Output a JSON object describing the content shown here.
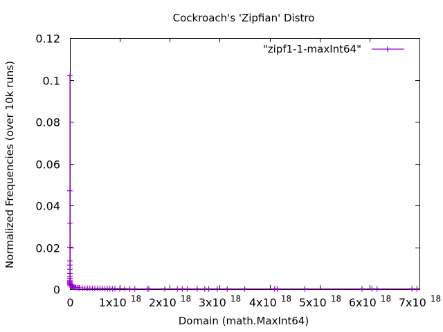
{
  "chart_data": {
    "type": "scatter",
    "title": "Cockroach's 'Zipfian' Distro",
    "xlabel": "Domain (math.MaxInt64)",
    "ylabel": "Normalized Frequencies (over 10k runs)",
    "xlim": [
      0,
      7e+18
    ],
    "ylim": [
      0,
      0.12
    ],
    "grid": false,
    "legend_position": "top-right",
    "x_ticks": [
      {
        "value": 0,
        "base": "0",
        "exp": ""
      },
      {
        "value": 1e+18,
        "base": "1x10",
        "exp": "18"
      },
      {
        "value": 2e+18,
        "base": "2x10",
        "exp": "18"
      },
      {
        "value": 3e+18,
        "base": "3x10",
        "exp": "18"
      },
      {
        "value": 4e+18,
        "base": "4x10",
        "exp": "18"
      },
      {
        "value": 5e+18,
        "base": "5x10",
        "exp": "18"
      },
      {
        "value": 6e+18,
        "base": "6x10",
        "exp": "18"
      },
      {
        "value": 7e+18,
        "base": "7x10",
        "exp": "18"
      }
    ],
    "y_ticks": [
      {
        "value": 0,
        "label": "0"
      },
      {
        "value": 0.02,
        "label": "0.02"
      },
      {
        "value": 0.04,
        "label": "0.04"
      },
      {
        "value": 0.06,
        "label": "0.06"
      },
      {
        "value": 0.08,
        "label": "0.08"
      },
      {
        "value": 0.1,
        "label": "0.1"
      },
      {
        "value": 0.12,
        "label": "0.12"
      }
    ],
    "series": [
      {
        "name": "\"zipf1-1-maxInt64\"",
        "color": "#9400d3",
        "marker": "plus",
        "connected": true,
        "points": [
          [
            0,
            0.102
          ],
          [
            0,
            0.047
          ],
          [
            0,
            0.0315
          ],
          [
            0,
            0.02
          ],
          [
            0,
            0.0135
          ],
          [
            0,
            0.0115
          ],
          [
            0,
            0.0095
          ],
          [
            0,
            0.0075
          ],
          [
            0,
            0.006
          ],
          [
            0,
            0.005
          ],
          [
            0,
            0.004
          ],
          [
            0,
            0.0035
          ],
          [
            0,
            0.003
          ],
          [
            0,
            0.0025
          ],
          [
            0,
            0.002
          ],
          [
            1e+16,
            0.0025
          ],
          [
            1.5e+16,
            0.002
          ],
          [
            2e+16,
            0.0018
          ],
          [
            3e+16,
            0.0015
          ],
          [
            4e+16,
            0.0013
          ],
          [
            5e+16,
            0.0012
          ],
          [
            6e+16,
            0.0011
          ],
          [
            8e+16,
            0.0009
          ],
          [
            1e+17,
            0.0008
          ],
          [
            1.2e+17,
            0.0008
          ],
          [
            1.5e+17,
            0.0007
          ],
          [
            1.8e+17,
            0.0006
          ],
          [
            2e+17,
            0.0006
          ],
          [
            2.5e+17,
            0.0005
          ],
          [
            3e+17,
            0.0005
          ],
          [
            3.5e+17,
            0.0004
          ],
          [
            4e+17,
            0.0004
          ],
          [
            4.5e+17,
            0.0004
          ],
          [
            5e+17,
            0.0003
          ],
          [
            5.5e+17,
            0.0003
          ],
          [
            6e+17,
            0.0003
          ],
          [
            6.5e+17,
            0.0003
          ],
          [
            7e+17,
            0.0002
          ],
          [
            7.5e+17,
            0.0002
          ],
          [
            8e+17,
            0.0002
          ],
          [
            8.5e+17,
            0.0002
          ],
          [
            9e+17,
            0.0002
          ],
          [
            1e+18,
            0.0002
          ],
          [
            1.1e+18,
            0.0002
          ],
          [
            1.2e+18,
            0.0001
          ],
          [
            1.3e+18,
            0.0001
          ],
          [
            1.55e+18,
            0.0001
          ],
          [
            1.58e+18,
            0.0001
          ],
          [
            1.9e+18,
            0.0001
          ],
          [
            2.15e+18,
            0.0001
          ],
          [
            2.25e+18,
            0.0001
          ],
          [
            2.35e+18,
            0.0001
          ],
          [
            2.55e+18,
            0.0001
          ],
          [
            2.7e+18,
            0.0001
          ],
          [
            2.78e+18,
            0.0001
          ],
          [
            2.95e+18,
            0.0001
          ],
          [
            3.15e+18,
            0.0001
          ],
          [
            3.5e+18,
            0.0001
          ],
          [
            4.1e+18,
            0.0001
          ],
          [
            4.15e+18,
            0.0001
          ],
          [
            4.7e+18,
            0.0001
          ],
          [
            5.85e+18,
            0.0001
          ],
          [
            6.05e+18,
            0.0001
          ],
          [
            6.15e+18,
            0.0001
          ],
          [
            6.85e+18,
            0.0001
          ],
          [
            6.95e+18,
            0.0001
          ]
        ]
      }
    ]
  }
}
